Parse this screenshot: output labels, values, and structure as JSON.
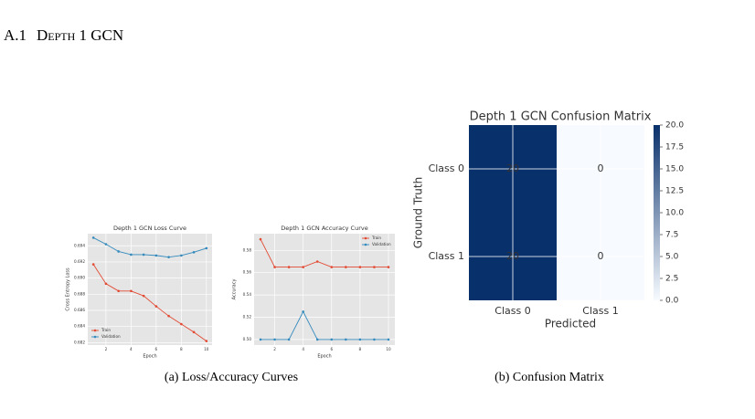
{
  "section": {
    "number": "A.1",
    "title": "Depth 1 GCN"
  },
  "chart_data": [
    {
      "type": "line",
      "title": "Depth 1 GCN Loss Curve",
      "xlabel": "Epoch",
      "ylabel": "Cross Entropy Loss",
      "x": [
        1,
        2,
        3,
        4,
        5,
        6,
        7,
        8,
        9,
        10
      ],
      "series": [
        {
          "name": "Train",
          "color": "#e24a33",
          "values": [
            0.6917,
            0.6893,
            0.6884,
            0.6884,
            0.6878,
            0.6865,
            0.6853,
            0.6843,
            0.6833,
            0.6822
          ]
        },
        {
          "name": "Validation",
          "color": "#348abd",
          "values": [
            0.695,
            0.6942,
            0.6933,
            0.6929,
            0.6929,
            0.6928,
            0.6926,
            0.6928,
            0.6932,
            0.6937
          ]
        }
      ],
      "xlim": [
        0.55,
        10.45
      ],
      "xticks": [
        2,
        4,
        6,
        8,
        10
      ],
      "ylim": [
        0.6817,
        0.6955
      ],
      "yticks": [
        0.682,
        0.684,
        0.686,
        0.688,
        0.69,
        0.692,
        0.694
      ],
      "grid": true,
      "legend": "lower left"
    },
    {
      "type": "line",
      "title": "Depth 1 GCN Accuracy Curve",
      "xlabel": "Epoch",
      "ylabel": "Accuracy",
      "x": [
        1,
        2,
        3,
        4,
        5,
        6,
        7,
        8,
        9,
        10
      ],
      "series": [
        {
          "name": "Train",
          "color": "#e24a33",
          "values": [
            0.59,
            0.565,
            0.565,
            0.565,
            0.57,
            0.565,
            0.565,
            0.565,
            0.565,
            0.565
          ]
        },
        {
          "name": "Validation",
          "color": "#348abd",
          "values": [
            0.5,
            0.5,
            0.5,
            0.525,
            0.5,
            0.5,
            0.5,
            0.5,
            0.5,
            0.5
          ]
        }
      ],
      "xlim": [
        0.55,
        10.45
      ],
      "xticks": [
        2,
        4,
        6,
        8,
        10
      ],
      "ylim": [
        0.495,
        0.595
      ],
      "yticks": [
        {
          "value": 0.5,
          "label": "0.50"
        },
        0.52,
        0.54,
        0.56,
        0.58
      ],
      "grid": true,
      "legend": "upper right"
    },
    {
      "type": "heatmap",
      "title": "Depth 1 GCN Confusion Matrix",
      "xlabel": "Predicted",
      "ylabel": "Ground Truth",
      "x_categories": [
        "Class 0",
        "Class 1"
      ],
      "y_categories": [
        "Class 0",
        "Class 1"
      ],
      "values": [
        [
          20,
          0
        ],
        [
          20,
          0
        ]
      ],
      "colormap": [
        "#f7fbff",
        "#08306b"
      ],
      "clim": [
        0,
        20
      ],
      "cticks": [
        {
          "value": 0,
          "label": "0.0"
        },
        2.5,
        5,
        7.5,
        10,
        12.5,
        15,
        17.5,
        {
          "value": 20,
          "label": "20.0"
        }
      ],
      "grid": true
    }
  ],
  "captions": [
    "(a) Loss/Accuracy Curves",
    "(b) Confusion Matrix"
  ]
}
